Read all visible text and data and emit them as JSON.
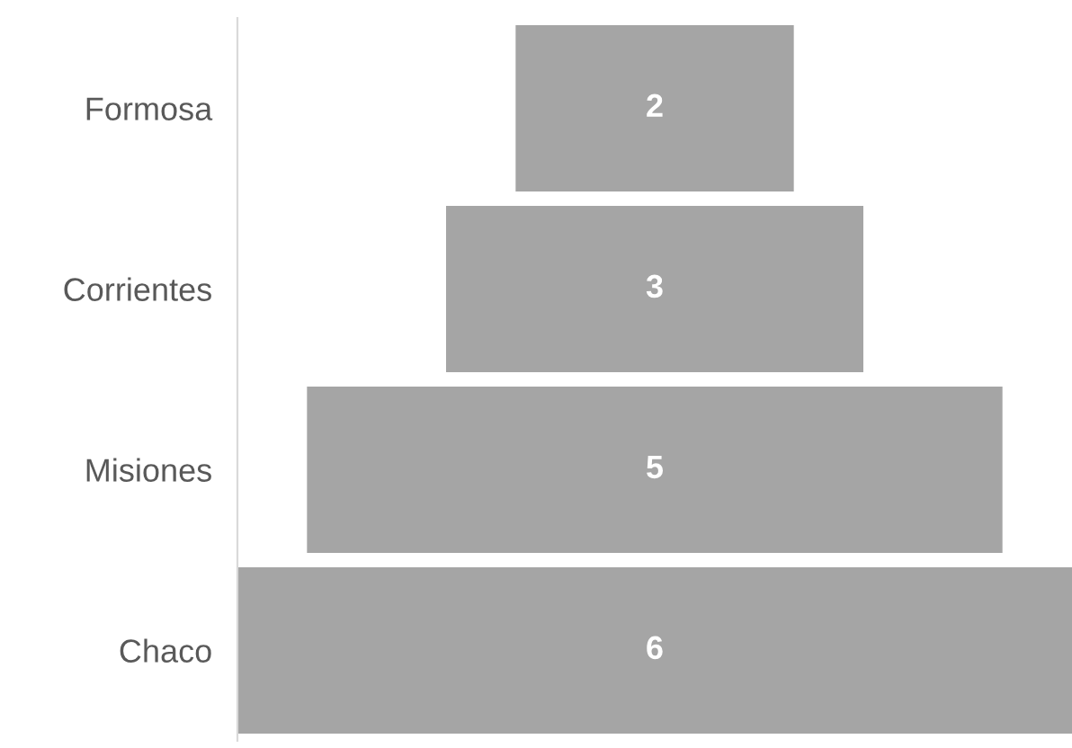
{
  "chart_data": {
    "type": "other",
    "categories": [
      "Formosa",
      "Corrientes",
      "Misiones",
      "Chaco"
    ],
    "values": [
      2,
      3,
      5,
      6
    ],
    "color": "#a5a5a5",
    "data_labels": true
  }
}
